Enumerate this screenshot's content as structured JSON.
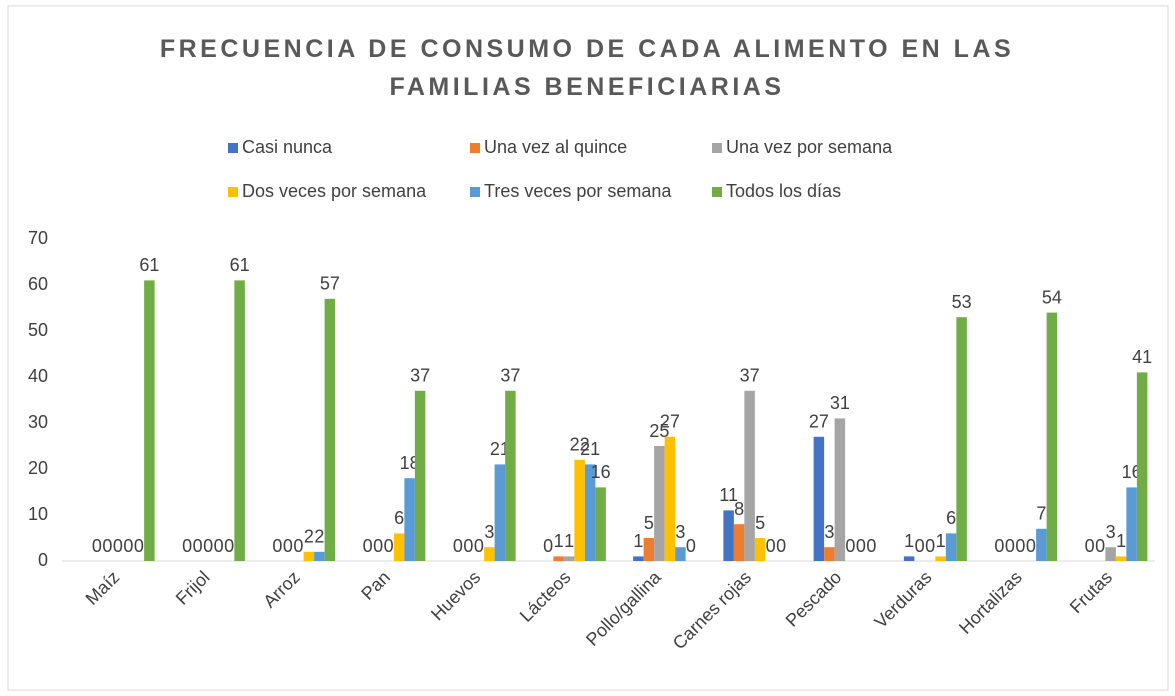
{
  "chart_data": {
    "type": "bar",
    "title": "FRECUENCIA DE CONSUMO DE CADA ALIMENTO EN LAS FAMILIAS BENEFICIARIAS",
    "categories": [
      "Maíz",
      "Frijol",
      "Arroz",
      "Pan",
      "Huevos",
      "Lácteos",
      "Pollo/gallina",
      "Carnes rojas",
      "Pescado",
      "Verduras",
      "Hortalizas",
      "Frutas"
    ],
    "series": [
      {
        "name": "Casi nunca",
        "color": "#4472c4",
        "values": [
          0,
          0,
          0,
          0,
          0,
          0,
          1,
          11,
          27,
          1,
          0,
          0
        ]
      },
      {
        "name": "Una vez al quince",
        "color": "#ed7d31",
        "values": [
          0,
          0,
          0,
          0,
          0,
          1,
          5,
          8,
          3,
          0,
          0,
          0
        ]
      },
      {
        "name": "Una vez por semana",
        "color": "#a5a5a5",
        "values": [
          0,
          0,
          0,
          0,
          0,
          1,
          25,
          37,
          31,
          0,
          0,
          3
        ]
      },
      {
        "name": "Dos veces por semana",
        "color": "#ffc000",
        "values": [
          0,
          0,
          2,
          6,
          3,
          22,
          27,
          5,
          0,
          1,
          0,
          1
        ]
      },
      {
        "name": "Tres veces por semana",
        "color": "#5b9bd5",
        "values": [
          0,
          0,
          2,
          18,
          21,
          21,
          3,
          0,
          0,
          6,
          7,
          16
        ]
      },
      {
        "name": "Todos los días",
        "color": "#70ad47",
        "values": [
          61,
          61,
          57,
          37,
          37,
          16,
          0,
          0,
          0,
          53,
          54,
          41
        ]
      }
    ],
    "ylim": [
      0,
      70
    ],
    "yticks": [
      0,
      10,
      20,
      30,
      40,
      50,
      60,
      70
    ],
    "grid": false
  }
}
